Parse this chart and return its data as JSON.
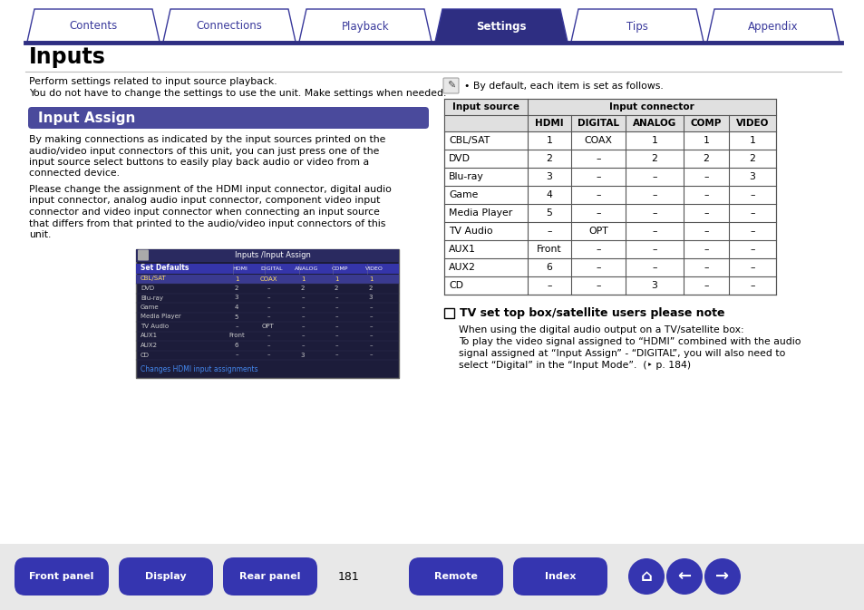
{
  "page_title": "Inputs",
  "section_title": "Input Assign",
  "section_bg_color": "#4a4a9c",
  "section_text_color": "#ffffff",
  "intro_lines": [
    "Perform settings related to input source playback.",
    "You do not have to change the settings to use the unit. Make settings when needed."
  ],
  "body_lines_1": [
    "By making connections as indicated by the input sources printed on the",
    "audio/video input connectors of this unit, you can just press one of the",
    "input source select buttons to easily play back audio or video from a",
    "connected device."
  ],
  "body_lines_2": [
    "Please change the assignment of the HDMI input connector, digital audio",
    "input connector, analog audio input connector, component video input",
    "connector and video input connector when connecting an input source",
    "that differs from that printed to the audio/video input connectors of this",
    "unit."
  ],
  "note_text": "By default, each item is set as follows.",
  "table_data": [
    [
      "CBL/SAT",
      "1",
      "COAX",
      "1",
      "1",
      "1"
    ],
    [
      "DVD",
      "2",
      "–",
      "2",
      "2",
      "2"
    ],
    [
      "Blu-ray",
      "3",
      "–",
      "–",
      "–",
      "3"
    ],
    [
      "Game",
      "4",
      "–",
      "–",
      "–",
      "–"
    ],
    [
      "Media Player",
      "5",
      "–",
      "–",
      "–",
      "–"
    ],
    [
      "TV Audio",
      "–",
      "OPT",
      "–",
      "–",
      "–"
    ],
    [
      "AUX1",
      "Front",
      "–",
      "–",
      "–",
      "–"
    ],
    [
      "AUX2",
      "6",
      "–",
      "–",
      "–",
      "–"
    ],
    [
      "CD",
      "–",
      "–",
      "3",
      "–",
      "–"
    ]
  ],
  "tv_note_title": "TV set top box/satellite users please note",
  "tv_note_lines": [
    "When using the digital audio output on a TV/satellite box:",
    "To play the video signal assigned to “HDMI” combined with the audio",
    "signal assigned at “Input Assign” - “DIGITAL”, you will also need to",
    "select “Digital” in the “Input Mode”.  (‣ p. 184)"
  ],
  "tab_labels": [
    "Contents",
    "Connections",
    "Playback",
    "Settings",
    "Tips",
    "Appendix"
  ],
  "tab_active": 3,
  "tab_active_color": "#2e2e82",
  "tab_inactive_color": "#ffffff",
  "tab_border_color": "#3a3a9c",
  "bottom_buttons": [
    "Front panel",
    "Display",
    "Rear panel",
    "Remote",
    "Index"
  ],
  "bottom_button_color": "#3535b0",
  "page_number": "181",
  "bg_color": "#ffffff",
  "header_line_color": "#2e2e82",
  "table_header_bg": "#e0e0e0",
  "table_border_color": "#555555",
  "sc_bg": "#1c1c3a",
  "sc_title_bg": "#2a2a60",
  "sc_row_highlight": "#3a3a90",
  "sc_text_normal": "#cccccc",
  "sc_text_highlight": "#ffdd66",
  "sc_note_color": "#4488ee",
  "bottom_bg": "#e8e8e8"
}
